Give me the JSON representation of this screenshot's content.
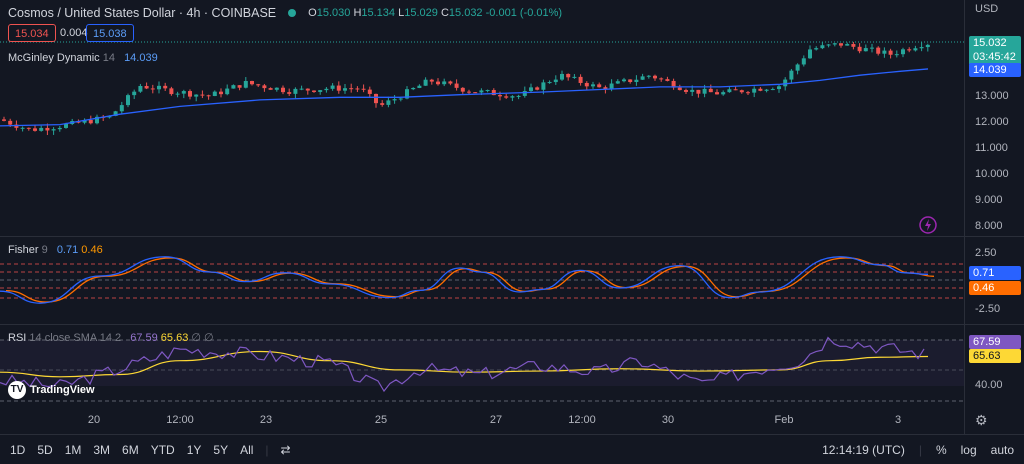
{
  "header": {
    "title": "Cosmos / United States Dollar · 4h · COINBASE",
    "open_label": "O",
    "open": "15.030",
    "high_label": "H",
    "high": "15.134",
    "low_label": "L",
    "low": "15.029",
    "close_label": "C",
    "close": "15.032",
    "change": "-0.001 (-0.01%)"
  },
  "price_boxes": {
    "bid": "15.034",
    "spread": "0.004",
    "ask": "15.038"
  },
  "indicators": {
    "mcginley": {
      "name": "McGinley Dynamic",
      "param": "14",
      "value": "14.039"
    },
    "fisher": {
      "name": "Fisher",
      "param": "9",
      "v1": "0.71",
      "v2": "0.46"
    },
    "rsi": {
      "name": "RSI",
      "param": "14 close SMA 14 2",
      "v1": "67.59",
      "v2": "65.63",
      "v3": "∅ ∅"
    }
  },
  "price_axis": {
    "currency": "USD",
    "ticks": [
      "13.000",
      "12.000",
      "11.000",
      "10.000",
      "9.000",
      "8.000"
    ],
    "last_price": "15.032",
    "countdown": "03:45:42",
    "mcginley_tag": "14.039"
  },
  "fisher_axis": {
    "ticks": [
      "2.50",
      "-2.50"
    ],
    "tag1": "0.71",
    "tag2": "0.46"
  },
  "rsi_axis": {
    "ticks": [
      "40.00"
    ],
    "tag1": "67.59",
    "tag2": "65.63"
  },
  "time_axis": [
    "20",
    "12:00",
    "23",
    "25",
    "27",
    "12:00",
    "30",
    "Feb",
    "3"
  ],
  "bottom_bar": {
    "ranges": [
      "1D",
      "5D",
      "1M",
      "3M",
      "6M",
      "YTD",
      "1Y",
      "5Y",
      "All"
    ],
    "clock": "12:14:19 (UTC)",
    "percent": "%",
    "log": "log",
    "auto": "auto"
  },
  "logo": "TradingView",
  "colors": {
    "up": "#26a69a",
    "down": "#ef5350",
    "mcginley": "#2962ff",
    "fisher1": "#2962ff",
    "fisher2": "#ff6d00",
    "rsi": "#7e57c2",
    "rsi_ma": "#fdd835"
  }
}
